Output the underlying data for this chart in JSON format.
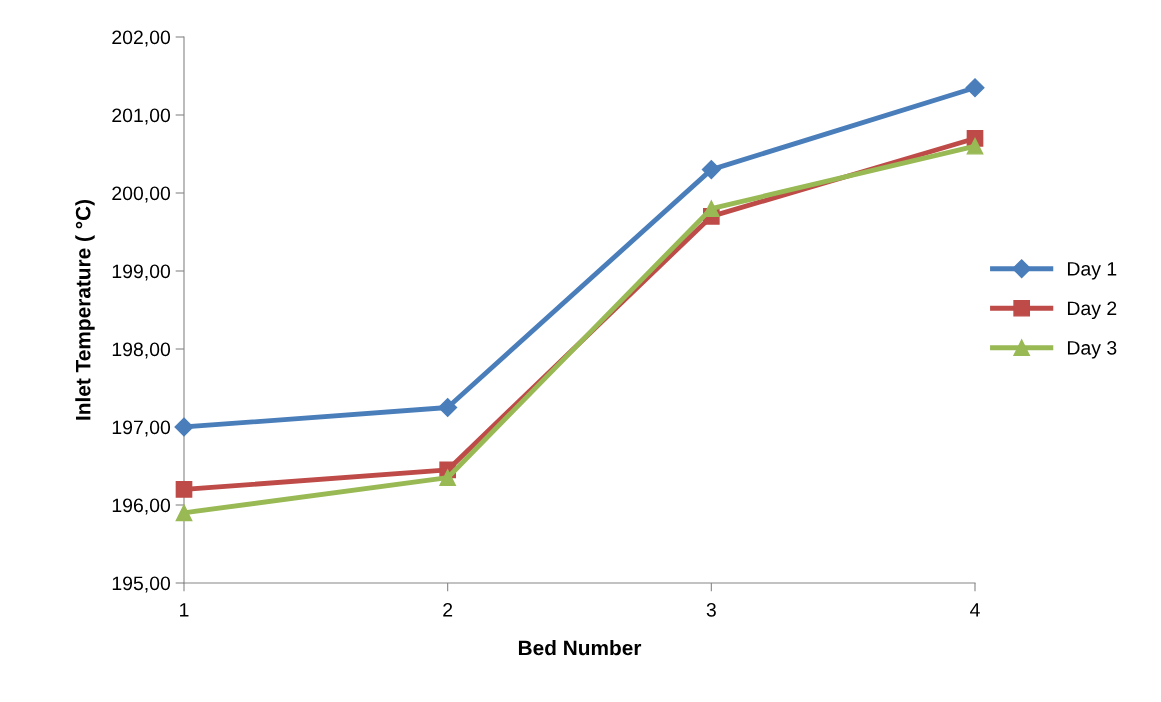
{
  "chart_data": {
    "type": "line",
    "xlabel": "Bed Number",
    "ylabel": "Inlet Temperature ( °C)",
    "categories": [
      "1",
      "2",
      "3",
      "4"
    ],
    "series": [
      {
        "name": "Day 1",
        "color": "#4a7ebb",
        "marker": "diamond",
        "values": [
          197.0,
          197.25,
          200.3,
          201.35
        ]
      },
      {
        "name": "Day 2",
        "color": "#be4b48",
        "marker": "square",
        "values": [
          196.2,
          196.45,
          199.7,
          200.7
        ]
      },
      {
        "name": "Day 3",
        "color": "#98b954",
        "marker": "triangle",
        "values": [
          195.9,
          196.35,
          199.8,
          200.6
        ]
      }
    ],
    "ylim": [
      195,
      202
    ],
    "yticks": [
      {
        "value": 195,
        "label": "195,00"
      },
      {
        "value": 196,
        "label": "196,00"
      },
      {
        "value": 197,
        "label": "197,00"
      },
      {
        "value": 198,
        "label": "198,00"
      },
      {
        "value": 199,
        "label": "199,00"
      },
      {
        "value": 200,
        "label": "200,00"
      },
      {
        "value": 201,
        "label": "201,00"
      },
      {
        "value": 202,
        "label": "202,00"
      }
    ],
    "grid": false,
    "legend": "right",
    "line_style": "solid"
  }
}
